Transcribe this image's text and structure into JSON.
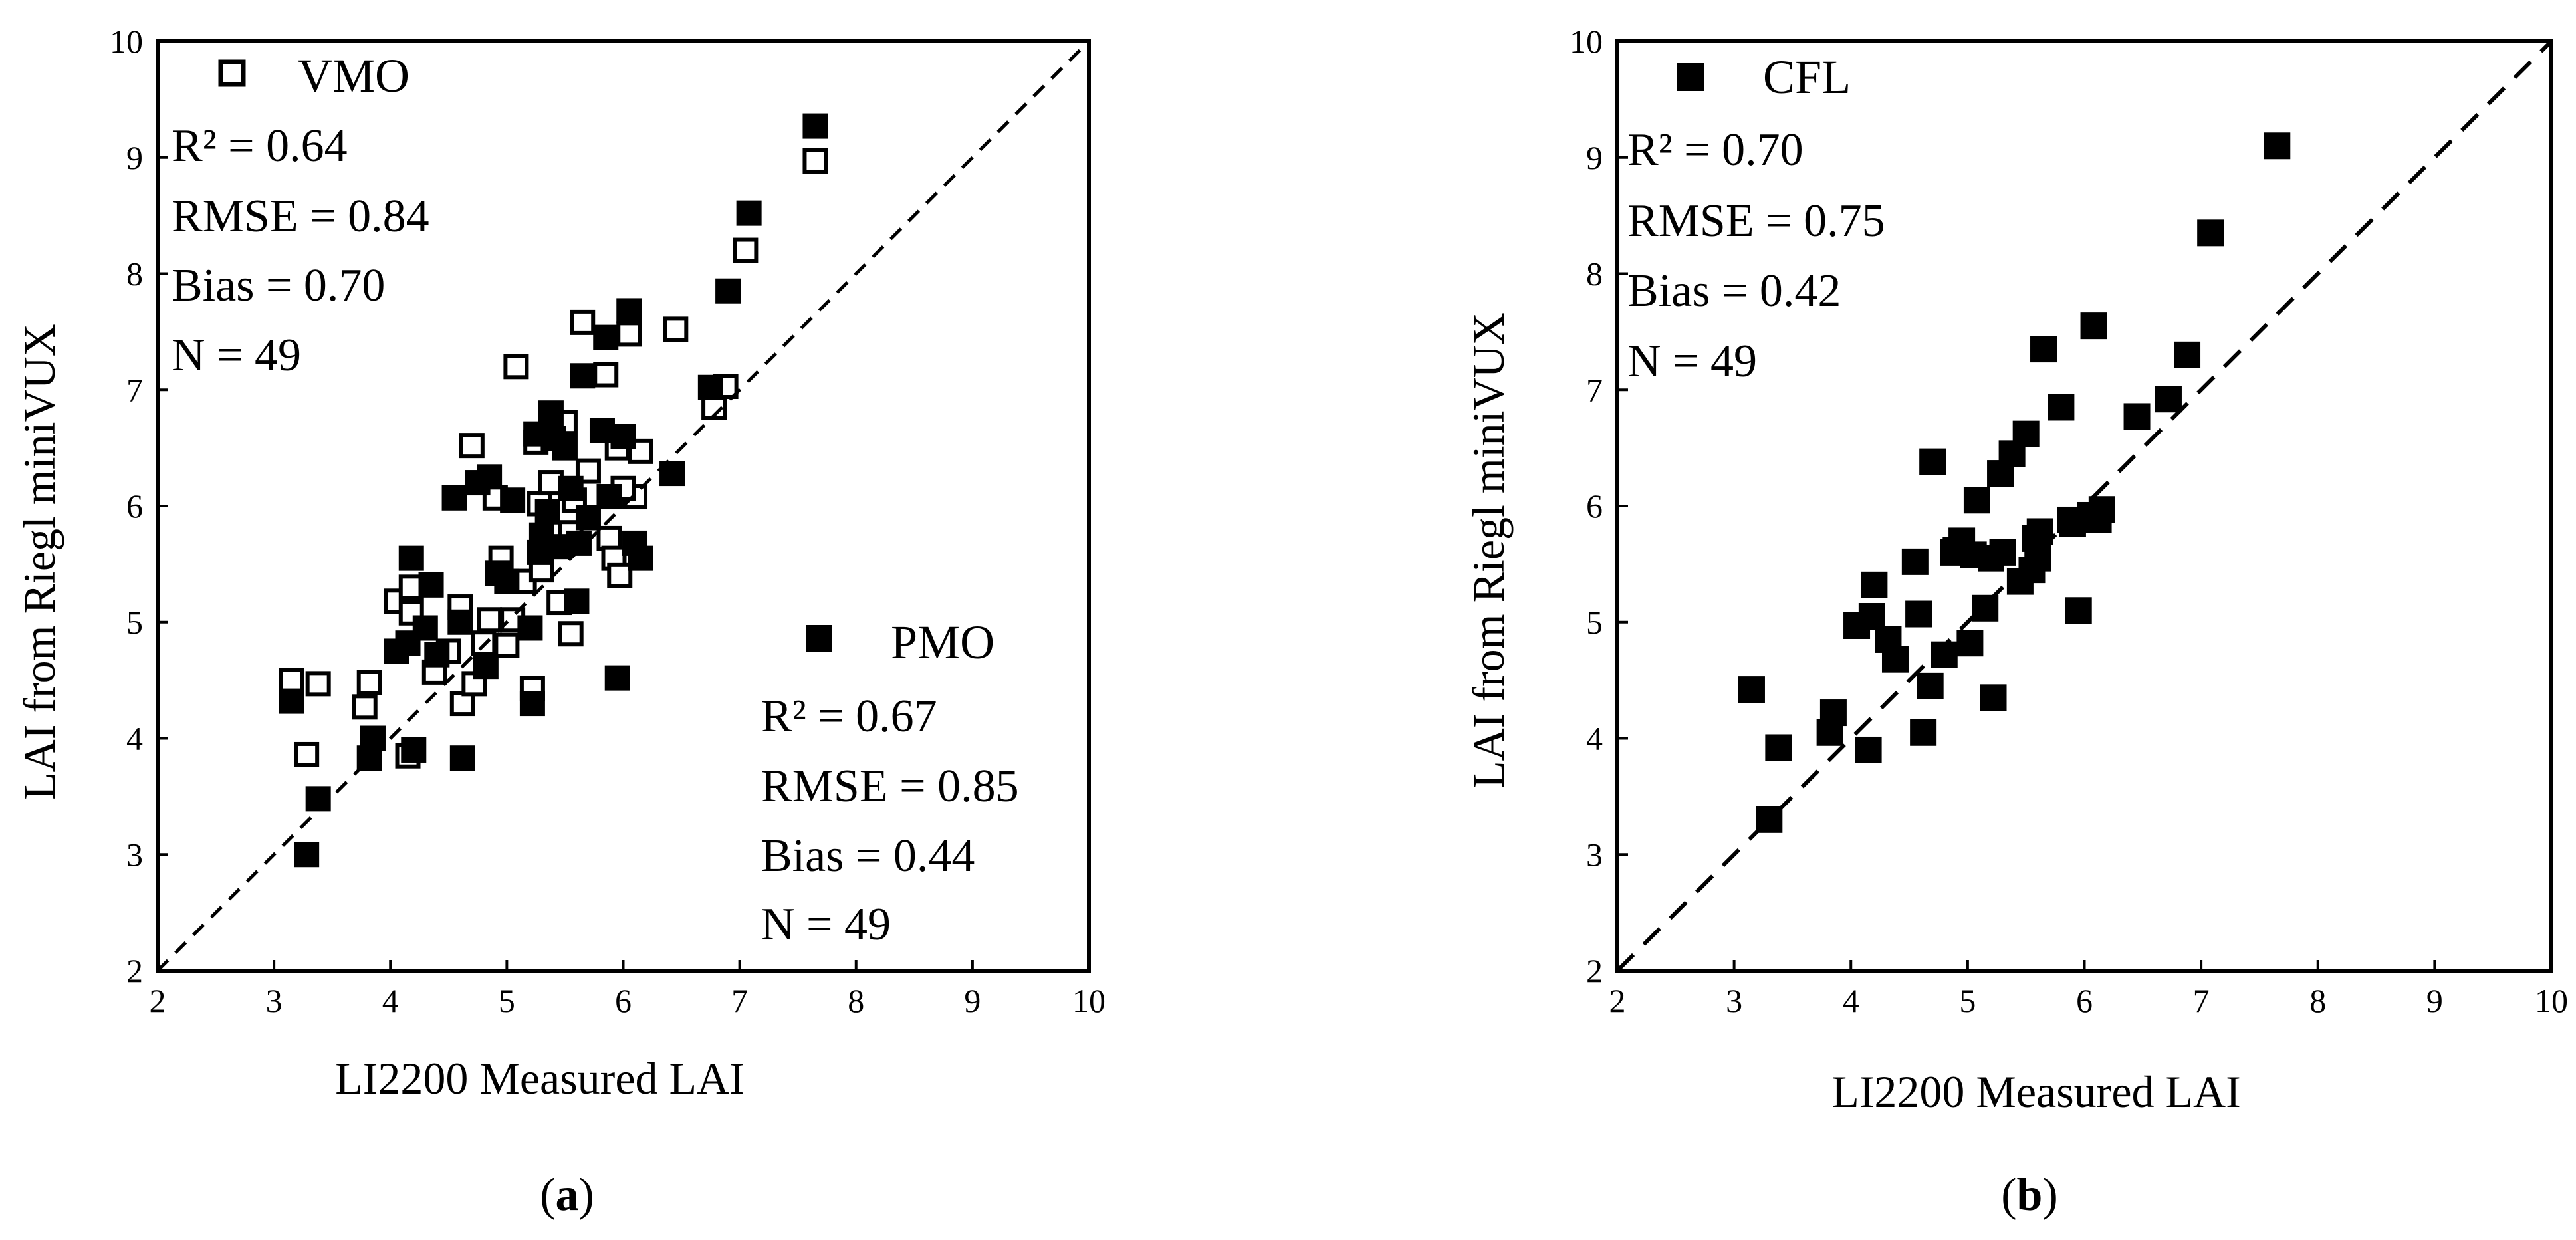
{
  "colors": {
    "ink": "#000000",
    "background": "#ffffff"
  },
  "chart_data": [
    {
      "type": "scatter",
      "panel": "a",
      "caption_open": "(",
      "caption_letter": "a",
      "caption_close": ")",
      "xlabel": "LI2200 Measured LAI",
      "ylabel": "LAI from Riegl miniVUX",
      "xlim": [
        2,
        10
      ],
      "ylim": [
        2,
        10
      ],
      "xticks": [
        2,
        3,
        4,
        5,
        6,
        7,
        8,
        9,
        10
      ],
      "yticks": [
        2,
        3,
        4,
        5,
        6,
        7,
        8,
        9,
        10
      ],
      "one_to_one_line": true,
      "series": [
        {
          "name": "VMO",
          "marker": "open-square",
          "stats": {
            "r2": "R² = 0.64",
            "rmse": "RMSE = 0.84",
            "bias": "Bias = 0.70",
            "n": "N = 49"
          },
          "points": [
            [
              3.15,
              4.5
            ],
            [
              3.38,
              4.47
            ],
            [
              3.28,
              3.86
            ],
            [
              3.82,
              4.48
            ],
            [
              3.78,
              4.27
            ],
            [
              4.05,
              5.18
            ],
            [
              4.18,
              5.3
            ],
            [
              4.18,
              5.08
            ],
            [
              4.15,
              3.85
            ],
            [
              4.38,
              4.57
            ],
            [
              4.6,
              5.13
            ],
            [
              4.62,
              4.3
            ],
            [
              4.7,
              6.52
            ],
            [
              4.72,
              4.47
            ],
            [
              4.8,
              4.82
            ],
            [
              4.85,
              5.02
            ],
            [
              4.9,
              6.07
            ],
            [
              5.0,
              4.8
            ],
            [
              5.05,
              5.02
            ],
            [
              5.08,
              7.2
            ],
            [
              5.15,
              5.35
            ],
            [
              5.22,
              4.43
            ],
            [
              5.28,
              6.02
            ],
            [
              5.3,
              5.45
            ],
            [
              5.38,
              6.2
            ],
            [
              5.45,
              5.17
            ],
            [
              5.5,
              6.72
            ],
            [
              5.55,
              4.9
            ],
            [
              5.55,
              5.77
            ],
            [
              5.58,
              6.05
            ],
            [
              5.65,
              7.58
            ],
            [
              5.85,
              7.13
            ],
            [
              5.88,
              5.72
            ],
            [
              5.92,
              5.55
            ],
            [
              5.95,
              6.5
            ],
            [
              5.97,
              5.4
            ],
            [
              6.05,
              7.48
            ],
            [
              6.1,
              6.08
            ],
            [
              6.15,
              6.47
            ],
            [
              6.45,
              7.52
            ],
            [
              6.78,
              6.85
            ],
            [
              6.88,
              7.03
            ],
            [
              7.05,
              8.2
            ],
            [
              7.65,
              8.97
            ],
            [
              5.25,
              6.55
            ],
            [
              4.5,
              4.75
            ],
            [
              5.7,
              6.3
            ],
            [
              6.0,
              6.15
            ],
            [
              4.95,
              5.55
            ]
          ]
        },
        {
          "name": "PMO",
          "marker": "filled-square",
          "stats": {
            "r2": "R² = 0.67",
            "rmse": "RMSE = 0.85",
            "bias": "Bias = 0.44",
            "n": "N = 49"
          },
          "points": [
            [
              3.28,
              3.0
            ],
            [
              3.38,
              3.48
            ],
            [
              3.15,
              4.32
            ],
            [
              3.82,
              3.83
            ],
            [
              3.85,
              4.0
            ],
            [
              4.05,
              4.75
            ],
            [
              4.18,
              5.55
            ],
            [
              4.15,
              4.82
            ],
            [
              4.2,
              3.9
            ],
            [
              4.35,
              5.32
            ],
            [
              4.4,
              4.72
            ],
            [
              4.55,
              6.07
            ],
            [
              4.6,
              5.0
            ],
            [
              4.62,
              3.83
            ],
            [
              4.75,
              6.2
            ],
            [
              4.85,
              6.25
            ],
            [
              4.82,
              4.62
            ],
            [
              4.92,
              5.42
            ],
            [
              5.05,
              6.05
            ],
            [
              5.2,
              4.95
            ],
            [
              5.22,
              4.3
            ],
            [
              5.25,
              6.62
            ],
            [
              5.28,
              5.6
            ],
            [
              5.3,
              5.75
            ],
            [
              5.38,
              6.8
            ],
            [
              5.4,
              6.58
            ],
            [
              5.45,
              5.65
            ],
            [
              5.5,
              6.5
            ],
            [
              5.55,
              6.15
            ],
            [
              5.6,
              5.18
            ],
            [
              5.62,
              5.68
            ],
            [
              5.65,
              7.12
            ],
            [
              5.82,
              6.65
            ],
            [
              5.88,
              6.08
            ],
            [
              5.95,
              4.52
            ],
            [
              6.05,
              7.68
            ],
            [
              6.1,
              5.68
            ],
            [
              6.15,
              5.55
            ],
            [
              6.42,
              6.28
            ],
            [
              6.75,
              7.02
            ],
            [
              6.9,
              7.85
            ],
            [
              7.08,
              8.52
            ],
            [
              7.65,
              9.27
            ],
            [
              5.7,
              5.9
            ],
            [
              5.0,
              5.35
            ],
            [
              4.3,
              4.95
            ],
            [
              6.0,
              6.6
            ],
            [
              5.85,
              7.45
            ],
            [
              5.35,
              5.95
            ]
          ]
        }
      ]
    },
    {
      "type": "scatter",
      "panel": "b",
      "caption_open": "(",
      "caption_letter": "b",
      "caption_close": ")",
      "xlabel": "LI2200 Measured LAI",
      "ylabel": "LAI from Riegl miniVUX",
      "xlim": [
        2,
        10
      ],
      "ylim": [
        2,
        10
      ],
      "xticks": [
        2,
        3,
        4,
        5,
        6,
        7,
        8,
        9,
        10
      ],
      "yticks": [
        2,
        3,
        4,
        5,
        6,
        7,
        8,
        9,
        10
      ],
      "one_to_one_line": true,
      "series": [
        {
          "name": "CFL",
          "marker": "filled-square",
          "stats": {
            "r2": "R² = 0.70",
            "rmse": "RMSE = 0.75",
            "bias": "Bias = 0.42",
            "n": "N = 49"
          },
          "points": [
            [
              3.15,
              4.42
            ],
            [
              3.3,
              3.3
            ],
            [
              3.38,
              3.92
            ],
            [
              3.82,
              4.05
            ],
            [
              3.85,
              4.22
            ],
            [
              4.05,
              4.97
            ],
            [
              4.15,
              3.9
            ],
            [
              4.18,
              5.05
            ],
            [
              4.2,
              5.32
            ],
            [
              4.32,
              4.85
            ],
            [
              4.38,
              4.68
            ],
            [
              4.55,
              5.52
            ],
            [
              4.58,
              5.07
            ],
            [
              4.62,
              4.05
            ],
            [
              4.68,
              4.45
            ],
            [
              4.7,
              6.38
            ],
            [
              4.8,
              4.72
            ],
            [
              4.88,
              5.6
            ],
            [
              4.95,
              5.7
            ],
            [
              5.02,
              4.82
            ],
            [
              5.05,
              5.58
            ],
            [
              5.08,
              6.05
            ],
            [
              5.15,
              5.12
            ],
            [
              5.2,
              5.55
            ],
            [
              5.22,
              4.35
            ],
            [
              5.28,
              6.28
            ],
            [
              5.3,
              5.6
            ],
            [
              5.38,
              6.45
            ],
            [
              5.45,
              5.35
            ],
            [
              5.5,
              6.62
            ],
            [
              5.55,
              5.45
            ],
            [
              5.58,
              5.72
            ],
            [
              5.62,
              5.78
            ],
            [
              5.65,
              7.35
            ],
            [
              5.8,
              6.85
            ],
            [
              5.88,
              5.88
            ],
            [
              5.95,
              5.1
            ],
            [
              6.05,
              5.92
            ],
            [
              6.08,
              7.55
            ],
            [
              6.12,
              5.88
            ],
            [
              6.15,
              5.97
            ],
            [
              6.45,
              6.77
            ],
            [
              6.72,
              6.92
            ],
            [
              6.88,
              7.3
            ],
            [
              7.08,
              8.35
            ],
            [
              7.65,
              9.1
            ],
            [
              5.6,
              5.55
            ],
            [
              5.9,
              5.85
            ],
            [
              4.9,
              5.62
            ]
          ]
        }
      ]
    }
  ]
}
